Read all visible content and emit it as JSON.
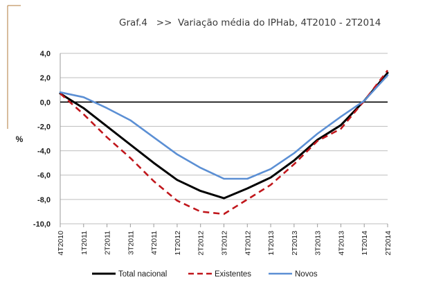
{
  "chart_data": {
    "type": "line",
    "title": "Graf.4   >>  Variação média do IPHab, 4T2010 - 2T2014",
    "xlabel": "",
    "ylabel": "%",
    "ylim": [
      -10,
      4
    ],
    "yticks": [
      "4,0",
      "2,0",
      "0,0",
      "-2,0",
      "-4,0",
      "-6,0",
      "-8,0",
      "-10,0"
    ],
    "ytick_values": [
      4,
      2,
      0,
      -2,
      -4,
      -6,
      -8,
      -10
    ],
    "categories": [
      "4T2010",
      "1T2011",
      "2T2011",
      "3T2011",
      "4T2011",
      "1T2012",
      "2T2012",
      "3T2012",
      "4T2012",
      "1T2013",
      "2T2013",
      "3T2013",
      "4T2013",
      "1T2014",
      "2T2014"
    ],
    "series": [
      {
        "name": "Total nacional",
        "color": "#000000",
        "style": "solid",
        "values": [
          0.7,
          -0.5,
          -2.0,
          -3.5,
          -5.0,
          -6.4,
          -7.3,
          -7.9,
          -7.1,
          -6.2,
          -4.8,
          -3.1,
          -1.9,
          0.1,
          2.4
        ]
      },
      {
        "name": "Existentes",
        "color": "#c0161b",
        "style": "dashed",
        "values": [
          0.7,
          -1.0,
          -2.9,
          -4.6,
          -6.5,
          -8.1,
          -9.0,
          -9.2,
          -8.0,
          -6.8,
          -5.1,
          -3.2,
          -2.2,
          0.1,
          2.6
        ]
      },
      {
        "name": "Novos",
        "color": "#5b8fd4",
        "style": "solid",
        "values": [
          0.8,
          0.4,
          -0.5,
          -1.5,
          -2.9,
          -4.3,
          -5.4,
          -6.3,
          -6.3,
          -5.5,
          -4.2,
          -2.6,
          -1.2,
          0.1,
          2.2
        ]
      }
    ],
    "grid": true,
    "legend_position": "bottom"
  }
}
